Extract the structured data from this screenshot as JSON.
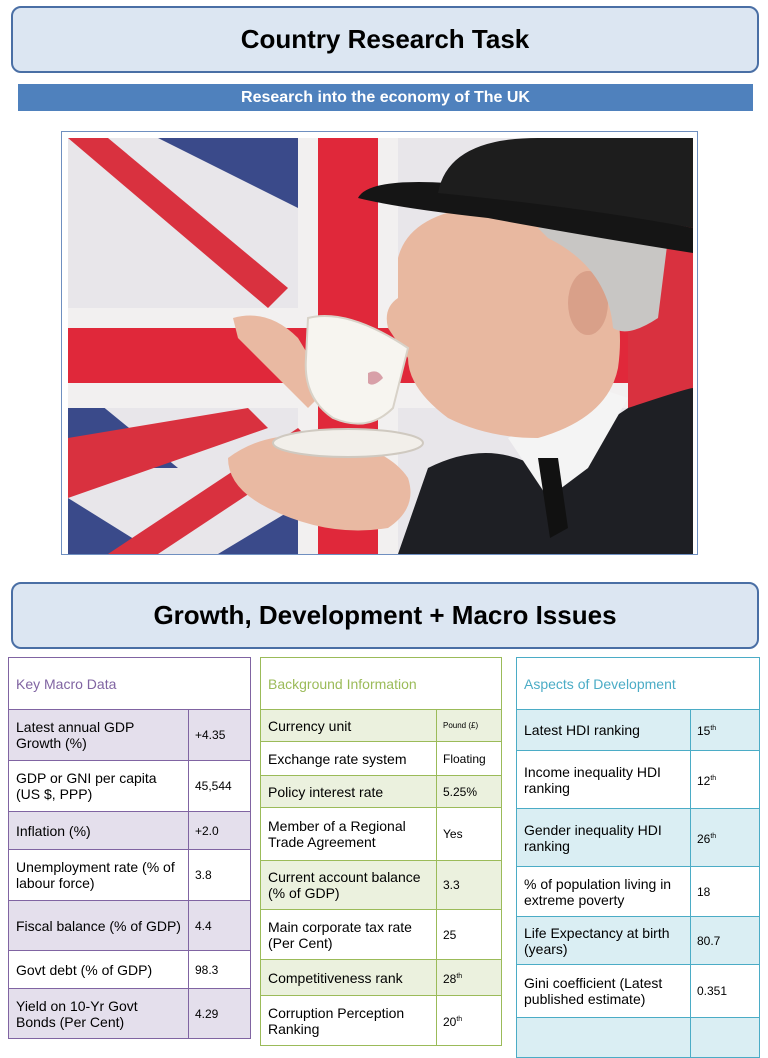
{
  "title": "Country Research Task",
  "subtitle": "Research into the economy of The UK",
  "photo": {
    "icon": "uk-flag-man-drinking-tea-image"
  },
  "section_title": "Growth, Development + Macro Issues",
  "macro": {
    "heading": "Key Macro Data",
    "color": "#8064a2",
    "rows": [
      {
        "label": "Latest annual GDP Growth (%)",
        "value": "+4.35"
      },
      {
        "label": "GDP or GNI per capita (US $, PPP)",
        "value": "45,544"
      },
      {
        "label": "Inflation (%)",
        "value": "+2.0"
      },
      {
        "label": "Unemployment rate (% of labour force)",
        "value": "3.8"
      },
      {
        "label": "Fiscal balance (% of GDP)",
        "value": "4.4"
      },
      {
        "label": "Govt debt (% of GDP)",
        "value": "98.3"
      },
      {
        "label": "Yield on 10-Yr Govt Bonds (Per Cent)",
        "value": "4.29"
      }
    ]
  },
  "background": {
    "heading": "Background Information",
    "color": "#9bbb59",
    "rows": [
      {
        "label": "Currency unit",
        "value": "Pound (£)"
      },
      {
        "label": "Exchange rate system",
        "value": "Floating"
      },
      {
        "label": "Policy interest rate",
        "value": "5.25%"
      },
      {
        "label": "Member of a Regional Trade Agreement",
        "value": "Yes"
      },
      {
        "label": "Current account balance (% of GDP)",
        "value": "3.3"
      },
      {
        "label": "Main corporate tax rate (Per Cent)",
        "value": "25"
      },
      {
        "label": "Competitiveness rank",
        "value": "28",
        "sup": "th"
      },
      {
        "label": "Corruption Perception Ranking",
        "value": "20",
        "sup": "th"
      }
    ]
  },
  "development": {
    "heading": "Aspects of Development",
    "color": "#4bacc6",
    "rows": [
      {
        "label": "Latest HDI ranking",
        "value": "15",
        "sup": "th"
      },
      {
        "label": "Income inequality HDI ranking",
        "value": "12",
        "sup": "th"
      },
      {
        "label": "Gender inequality HDI ranking",
        "value": "26",
        "sup": "th"
      },
      {
        "label": "% of population living in extreme poverty",
        "value": "18"
      },
      {
        "label": "Life Expectancy at birth (years)",
        "value": "80.7"
      },
      {
        "label": "Gini coefficient (Latest published estimate)",
        "value": "0.351"
      }
    ]
  }
}
